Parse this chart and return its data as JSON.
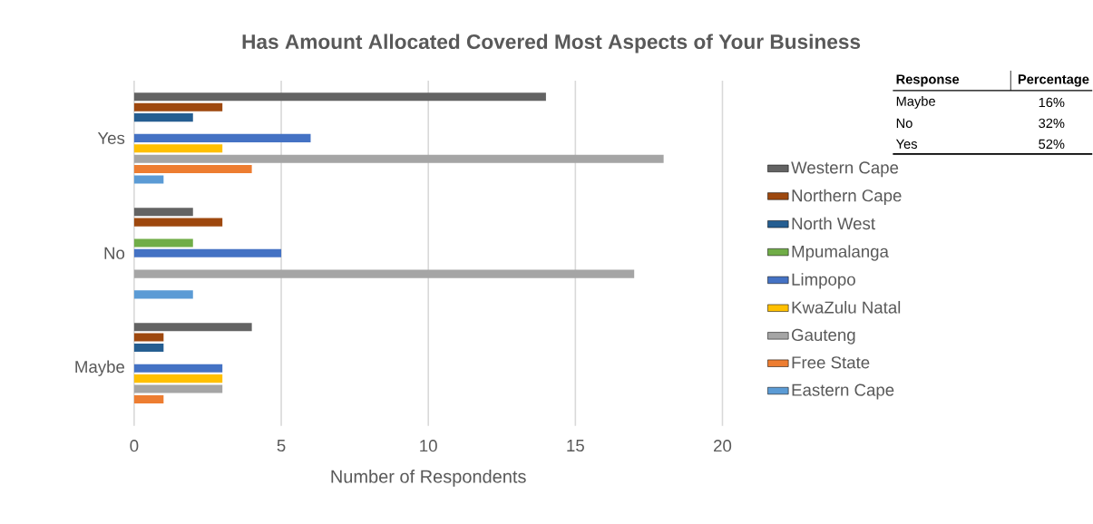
{
  "chart_data": {
    "type": "bar",
    "orientation": "horizontal",
    "title": "Has Amount Allocated Covered Most Aspects of Your Business",
    "xlabel": "Number of Respondents",
    "categories": [
      "Yes",
      "No",
      "Maybe"
    ],
    "series": [
      {
        "name": "Western Cape",
        "color": "#636363",
        "values": [
          14,
          2,
          4
        ]
      },
      {
        "name": "Northern Cape",
        "color": "#9e480e",
        "values": [
          3,
          3,
          1
        ]
      },
      {
        "name": "North West",
        "color": "#255e91",
        "values": [
          2,
          null,
          1
        ]
      },
      {
        "name": "Mpumalanga",
        "color": "#70ad47",
        "values": [
          null,
          2,
          null
        ]
      },
      {
        "name": "Limpopo",
        "color": "#4472c4",
        "values": [
          6,
          5,
          3
        ]
      },
      {
        "name": "KwaZulu Natal",
        "color": "#ffc000",
        "values": [
          3,
          null,
          3
        ]
      },
      {
        "name": "Gauteng",
        "color": "#a5a5a5",
        "values": [
          18,
          17,
          3
        ]
      },
      {
        "name": "Free State",
        "color": "#ed7d31",
        "values": [
          4,
          null,
          1
        ]
      },
      {
        "name": "Eastern Cape",
        "color": "#5b9bd5",
        "values": [
          1,
          2,
          null
        ]
      }
    ],
    "xlim": [
      0,
      20
    ],
    "xticks": [
      0,
      5,
      10,
      15,
      20
    ],
    "grid": "x",
    "legend": "right",
    "annotations": [
      "Response",
      "Percentage",
      "Maybe",
      "16%",
      "No",
      "32%",
      "Yes",
      "52%"
    ]
  }
}
